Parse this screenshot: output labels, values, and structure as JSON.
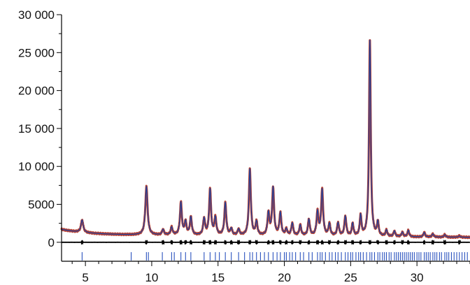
{
  "chart_data": {
    "type": "line",
    "title": "",
    "xlabel": "",
    "ylabel": "",
    "xlim": [
      3.2,
      34.0
    ],
    "ylim": [
      -2500,
      30000
    ],
    "x_ticks": [
      5,
      10,
      15,
      20,
      25,
      30
    ],
    "x_tick_labels": [
      "5",
      "10",
      "15",
      "20",
      "25",
      "30"
    ],
    "y_ticks": [
      0,
      5000,
      10000,
      15000,
      20000,
      25000,
      30000
    ],
    "y_tick_labels": [
      "0",
      "5000",
      "10 000",
      "15 000",
      "20 000",
      "25 000",
      "30 000"
    ],
    "grid": false,
    "legend": "none",
    "colors": {
      "observed": "#b03a2e",
      "calculated": "#1f3f9a",
      "difference": "#000000",
      "reflections": "#2a52be",
      "axis": "#000000"
    },
    "background": {
      "start_x": 3.2,
      "start_y": 1700,
      "decay_to": 1000,
      "end_x": 34.0,
      "end_y": 650
    },
    "peaks": [
      {
        "x": 4.75,
        "y": 2950
      },
      {
        "x": 9.6,
        "y": 7350
      },
      {
        "x": 10.85,
        "y": 1650
      },
      {
        "x": 11.5,
        "y": 1950
      },
      {
        "x": 12.2,
        "y": 5200
      },
      {
        "x": 12.55,
        "y": 2600
      },
      {
        "x": 12.95,
        "y": 3250
      },
      {
        "x": 13.95,
        "y": 3050
      },
      {
        "x": 14.4,
        "y": 6900
      },
      {
        "x": 14.8,
        "y": 3150
      },
      {
        "x": 15.55,
        "y": 5150
      },
      {
        "x": 16.0,
        "y": 1700
      },
      {
        "x": 16.55,
        "y": 1650
      },
      {
        "x": 17.4,
        "y": 9600
      },
      {
        "x": 17.9,
        "y": 2600
      },
      {
        "x": 18.8,
        "y": 3750
      },
      {
        "x": 19.15,
        "y": 7100
      },
      {
        "x": 19.7,
        "y": 3800
      },
      {
        "x": 20.15,
        "y": 1650
      },
      {
        "x": 20.6,
        "y": 2450
      },
      {
        "x": 21.2,
        "y": 2200
      },
      {
        "x": 21.85,
        "y": 2950
      },
      {
        "x": 22.5,
        "y": 3900
      },
      {
        "x": 22.85,
        "y": 6850
      },
      {
        "x": 23.4,
        "y": 2350
      },
      {
        "x": 24.05,
        "y": 2500
      },
      {
        "x": 24.6,
        "y": 3350
      },
      {
        "x": 25.15,
        "y": 2400
      },
      {
        "x": 25.75,
        "y": 3450
      },
      {
        "x": 26.45,
        "y": 26700
      },
      {
        "x": 27.05,
        "y": 2550
      },
      {
        "x": 27.7,
        "y": 1550
      },
      {
        "x": 28.3,
        "y": 1450
      },
      {
        "x": 28.9,
        "y": 1300
      },
      {
        "x": 29.35,
        "y": 1550
      },
      {
        "x": 30.55,
        "y": 1300
      },
      {
        "x": 31.2,
        "y": 1100
      },
      {
        "x": 32.1,
        "y": 1000
      },
      {
        "x": 33.2,
        "y": 850
      }
    ],
    "difference_baseline": 0,
    "reflection_marker_y": -1850,
    "reflection_positions": [
      4.75,
      8.45,
      9.6,
      9.75,
      10.8,
      11.5,
      11.7,
      12.2,
      12.55,
      12.95,
      13.95,
      14.4,
      14.8,
      15.1,
      15.55,
      16.0,
      16.55,
      17.0,
      17.4,
      17.6,
      17.9,
      18.2,
      18.5,
      18.8,
      19.15,
      19.45,
      19.7,
      20.0,
      20.15,
      20.4,
      20.6,
      20.85,
      21.2,
      21.45,
      21.85,
      22.1,
      22.5,
      22.7,
      22.85,
      23.1,
      23.4,
      23.6,
      23.85,
      24.05,
      24.3,
      24.6,
      24.8,
      25.0,
      25.15,
      25.4,
      25.6,
      25.75,
      25.95,
      26.2,
      26.45,
      26.6,
      26.8,
      27.05,
      27.2,
      27.4,
      27.55,
      27.7,
      27.9,
      28.05,
      28.3,
      28.45,
      28.6,
      28.75,
      28.9,
      29.05,
      29.2,
      29.35,
      29.5,
      29.65,
      29.8,
      30.0,
      30.15,
      30.3,
      30.55,
      30.7,
      30.85,
      31.0,
      31.2,
      31.35,
      31.5,
      31.7,
      31.85,
      32.1,
      32.25,
      32.4,
      32.6,
      32.8,
      33.0,
      33.2,
      33.4,
      33.6,
      33.8
    ]
  }
}
